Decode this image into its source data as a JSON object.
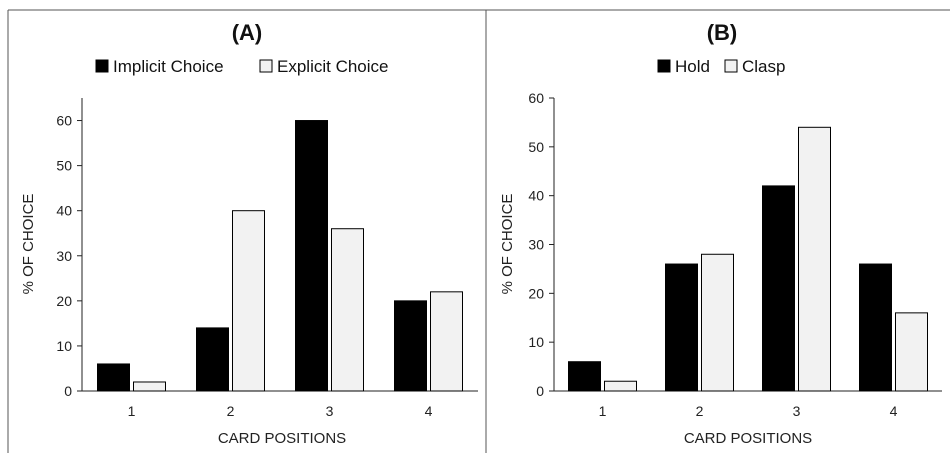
{
  "chart_data": [
    {
      "type": "bar",
      "title": "(A)",
      "xlabel": "CARD POSITIONS",
      "ylabel": "% OF CHOICE",
      "categories": [
        "1",
        "2",
        "3",
        "4"
      ],
      "ylim": [
        0,
        65
      ],
      "yticks": [
        0,
        10,
        20,
        30,
        40,
        50,
        60
      ],
      "legend_position": "top",
      "grid": false,
      "series": [
        {
          "name": "Implicit Choice",
          "color": "#000000",
          "values": [
            6,
            14,
            60,
            20
          ]
        },
        {
          "name": "Explicit Choice",
          "color": "#f2f2f2",
          "values": [
            2,
            40,
            36,
            22
          ]
        }
      ]
    },
    {
      "type": "bar",
      "title": "(B)",
      "xlabel": "CARD POSITIONS",
      "ylabel": "% OF CHOICE",
      "categories": [
        "1",
        "2",
        "3",
        "4"
      ],
      "ylim": [
        0,
        60
      ],
      "yticks": [
        0,
        10,
        20,
        30,
        40,
        50,
        60
      ],
      "legend_position": "top",
      "grid": false,
      "series": [
        {
          "name": "Hold",
          "color": "#000000",
          "values": [
            6,
            26,
            42,
            26
          ]
        },
        {
          "name": "Clasp",
          "color": "#f2f2f2",
          "values": [
            2,
            28,
            54,
            16
          ]
        }
      ]
    }
  ]
}
